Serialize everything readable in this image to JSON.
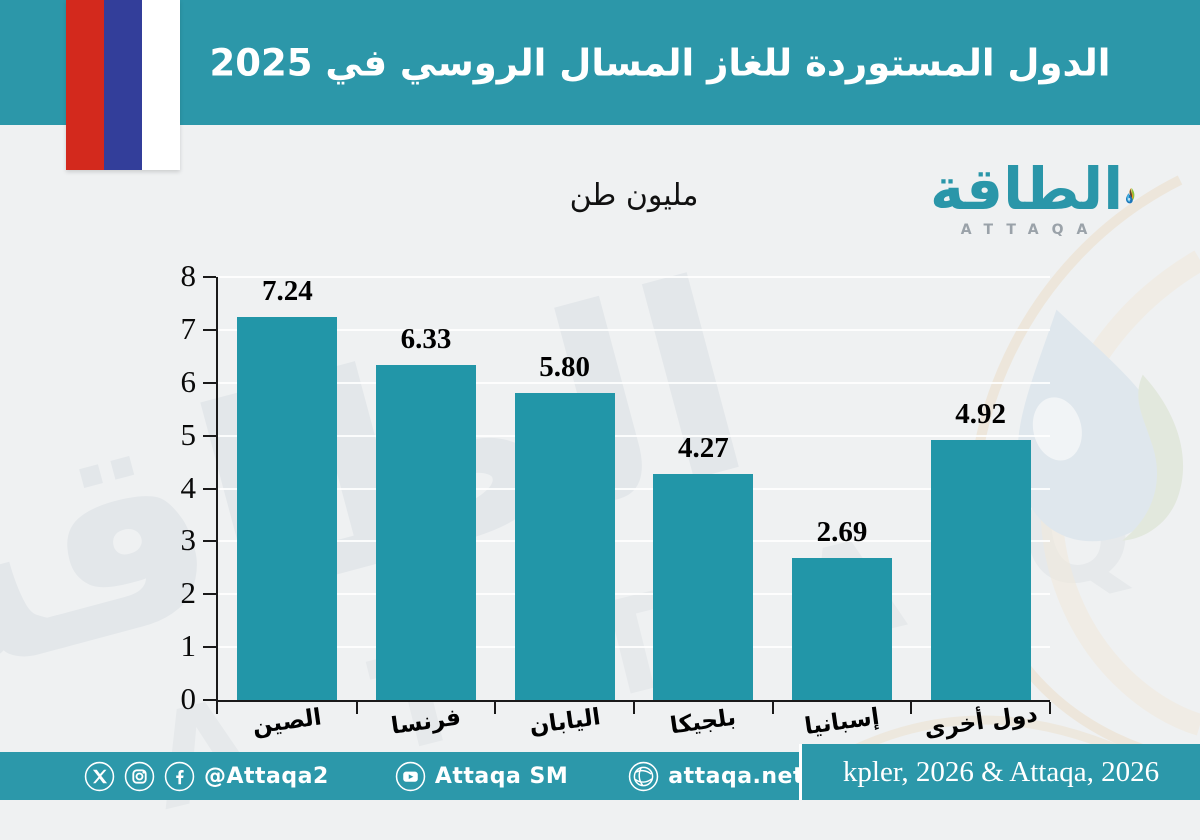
{
  "header": {
    "title": "الدول المستوردة للغاز المسال الروسي في 2025"
  },
  "flag": {
    "country": "russia",
    "stripe_colors": [
      "#d3291d",
      "#333e9a",
      "#ffffff"
    ]
  },
  "logo": {
    "arabic": "الطاقة",
    "latin": "ATTAQA"
  },
  "chart_data": {
    "type": "bar",
    "title": "الدول المستوردة للغاز المسال الروسي في 2025",
    "unit_label": "مليون طن",
    "categories": [
      "الصين",
      "فرنسا",
      "اليابان",
      "بلجيكا",
      "إسبانيا",
      "دول أخرى"
    ],
    "values": [
      7.24,
      6.33,
      5.8,
      4.27,
      2.69,
      4.92
    ],
    "value_labels": [
      "7.24",
      "6.33",
      "5.80",
      "4.27",
      "2.69",
      "4.92"
    ],
    "ylim": [
      0,
      8
    ],
    "yticks": [
      0,
      1,
      2,
      3,
      4,
      5,
      6,
      7,
      8
    ],
    "xlabel": "",
    "ylabel": "",
    "bar_color": "#2296a8",
    "grid": "horizontal-faint-white",
    "legend": "none"
  },
  "watermark": {
    "arabic": "الطاقة",
    "latin": "A T T A Q A"
  },
  "footer": {
    "social_handle": "@Attaqa2",
    "youtube_handle": "Attaqa SM",
    "website": "attaqa.net",
    "source": "kpler, 2026 & Attaqa, 2026",
    "icons": [
      "x-icon",
      "instagram-icon",
      "facebook-icon",
      "youtube-icon",
      "globe-icon"
    ]
  },
  "colors": {
    "band_teal": "#2c97a9",
    "bar_teal": "#2296a8",
    "background": "#eff1f2",
    "text_dark": "#000000",
    "text_light": "#ffffff"
  }
}
